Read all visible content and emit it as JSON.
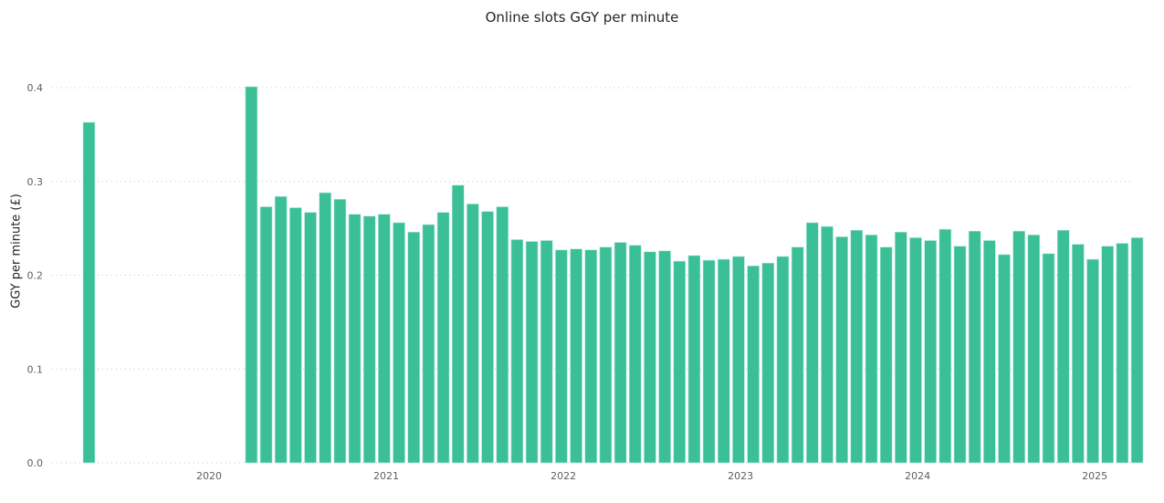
{
  "chart_data": {
    "type": "bar",
    "title": "Online slots GGY per minute",
    "xlabel": "",
    "ylabel": "GGY per minute (£)",
    "ylim": [
      0,
      0.4
    ],
    "yticks": [
      "0.0",
      "0.1",
      "0.2",
      "0.3",
      "0.4"
    ],
    "xticks": [
      "2020",
      "2021",
      "2022",
      "2023",
      "2024",
      "2025"
    ],
    "grid": true,
    "color": "#3BBF97",
    "categories": [
      "2019-04",
      "2020-03",
      "2020-04",
      "2020-05",
      "2020-06",
      "2020-07",
      "2020-08",
      "2020-09",
      "2020-10",
      "2020-11",
      "2020-12",
      "2021-01",
      "2021-02",
      "2021-03",
      "2021-04",
      "2021-05",
      "2021-06",
      "2021-07",
      "2021-08",
      "2021-09",
      "2021-10",
      "2021-11",
      "2021-12",
      "2022-01",
      "2022-02",
      "2022-03",
      "2022-04",
      "2022-05",
      "2022-06",
      "2022-07",
      "2022-08",
      "2022-09",
      "2022-10",
      "2022-11",
      "2022-12",
      "2023-01",
      "2023-02",
      "2023-03",
      "2023-04",
      "2023-05",
      "2023-06",
      "2023-07",
      "2023-08",
      "2023-09",
      "2023-10",
      "2023-11",
      "2023-12",
      "2024-01",
      "2024-02",
      "2024-03",
      "2024-04",
      "2024-05",
      "2024-06",
      "2024-07",
      "2024-08",
      "2024-09",
      "2024-10",
      "2024-11",
      "2024-12",
      "2025-01",
      "2025-02",
      "2025-03"
    ],
    "values": [
      0.363,
      0.401,
      0.273,
      0.284,
      0.272,
      0.267,
      0.288,
      0.281,
      0.265,
      0.263,
      0.265,
      0.256,
      0.246,
      0.254,
      0.267,
      0.296,
      0.276,
      0.268,
      0.273,
      0.238,
      0.236,
      0.237,
      0.227,
      0.228,
      0.227,
      0.23,
      0.235,
      0.232,
      0.225,
      0.226,
      0.215,
      0.221,
      0.216,
      0.217,
      0.22,
      0.21,
      0.213,
      0.22,
      0.23,
      0.256,
      0.252,
      0.241,
      0.248,
      0.243,
      0.23,
      0.246,
      0.24,
      0.237,
      0.249,
      0.231,
      0.247,
      0.237,
      0.222,
      0.247,
      0.243,
      0.223,
      0.248,
      0.233,
      0.217,
      0.231,
      0.234,
      0.24
    ]
  }
}
